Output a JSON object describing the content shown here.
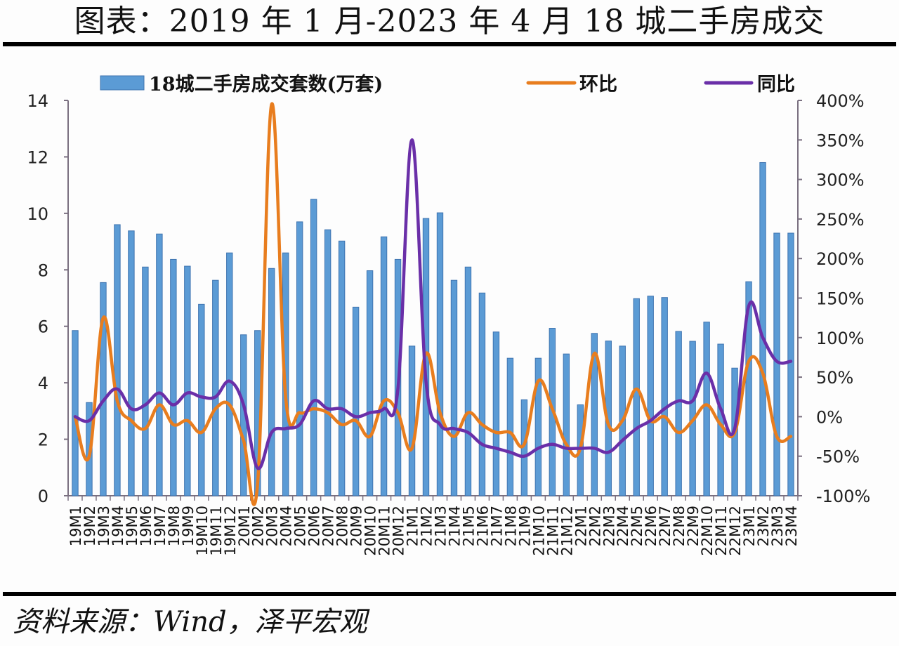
{
  "title": "图表：2019 年 1 月-2023 年 4 月 18 城二手房成交",
  "source": "资料来源：Wind，泽平宏观",
  "legend": [
    {
      "label": "18城二手房成交套数(万套)",
      "type": "bar",
      "color": "#5b9bd5"
    },
    {
      "label": "环比",
      "type": "line",
      "color": "#e87d1e"
    },
    {
      "label": "同比",
      "type": "line",
      "color": "#6a2fa8"
    }
  ],
  "colors": {
    "bar": "#5b9bd5",
    "bar_edge": "#3f74b0",
    "mom": "#e87d1e",
    "yoy": "#6a2fa8",
    "axis": "#7a7080"
  },
  "chart_data": {
    "type": "bar+line",
    "title": "图表：2019 年 1 月-2023 年 4 月 18 城二手房成交",
    "xlabel": "",
    "ylabel_left": "18城二手房成交套数(万套)",
    "ylabel_right": "",
    "ylim_left": [
      0,
      14
    ],
    "yticks_left": [
      0,
      2,
      4,
      6,
      8,
      10,
      12,
      14
    ],
    "ylim_right": [
      -100,
      400
    ],
    "yticks_right": [
      "-100%",
      "-50%",
      "0%",
      "50%",
      "100%",
      "150%",
      "200%",
      "250%",
      "300%",
      "350%",
      "400%"
    ],
    "yticks_right_values": [
      -100,
      -50,
      0,
      50,
      100,
      150,
      200,
      250,
      300,
      350,
      400
    ],
    "legend_position": "top",
    "grid": false,
    "categories": [
      "19M1",
      "19M2",
      "19M3",
      "19M4",
      "19M5",
      "19M6",
      "19M7",
      "19M8",
      "19M9",
      "19M10",
      "19M11",
      "19M12",
      "20M1",
      "20M2",
      "20M3",
      "20M4",
      "20M5",
      "20M6",
      "20M7",
      "20M8",
      "20M9",
      "20M10",
      "20M11",
      "20M12",
      "21M1",
      "21M2",
      "21M3",
      "21M4",
      "21M5",
      "21M6",
      "21M7",
      "21M8",
      "21M9",
      "21M10",
      "21M11",
      "21M12",
      "22M1",
      "22M2",
      "22M3",
      "22M4",
      "22M5",
      "22M6",
      "22M7",
      "22M8",
      "22M9",
      "22M10",
      "22M11",
      "22M12",
      "23M1",
      "23M2",
      "23M3",
      "23M4"
    ],
    "series": [
      {
        "name": "18城二手房成交套数(万套)",
        "axis": "left",
        "type": "bar",
        "values": [
          5.85,
          3.3,
          7.55,
          9.6,
          9.38,
          8.1,
          9.27,
          8.37,
          8.13,
          6.78,
          7.63,
          8.6,
          5.7,
          5.85,
          8.05,
          8.6,
          9.7,
          10.5,
          9.42,
          9.02,
          6.68,
          7.97,
          9.17,
          8.37,
          5.3,
          9.82,
          10.02,
          7.63,
          8.1,
          7.18,
          5.8,
          4.87,
          3.4,
          4.87,
          5.93,
          5.02,
          3.22,
          5.75,
          5.48,
          5.3,
          6.98,
          7.07,
          7.02,
          5.82,
          5.47,
          6.15,
          5.37,
          4.52,
          7.58,
          11.8,
          9.3,
          9.3
        ]
      },
      {
        "name": "环比",
        "axis": "right",
        "type": "line",
        "unit": "%",
        "values": [
          0,
          -50,
          125,
          20,
          -5,
          -15,
          15,
          -10,
          -5,
          -20,
          10,
          15,
          -30,
          -85,
          395,
          25,
          5,
          10,
          5,
          -10,
          -5,
          -25,
          20,
          5,
          -40,
          80,
          5,
          -25,
          5,
          -10,
          -20,
          -20,
          -35,
          45,
          10,
          -35,
          -40,
          80,
          -10,
          -5,
          35,
          -5,
          0,
          -20,
          -5,
          15,
          -10,
          -20,
          70,
          55,
          -25,
          -25
        ]
      },
      {
        "name": "同比",
        "axis": "right",
        "type": "line",
        "unit": "%",
        "values": [
          0,
          -5,
          20,
          35,
          10,
          15,
          30,
          15,
          30,
          25,
          25,
          45,
          15,
          -65,
          -20,
          -15,
          -10,
          20,
          10,
          10,
          0,
          5,
          10,
          35,
          350,
          45,
          -10,
          -15,
          -20,
          -35,
          -40,
          -45,
          -50,
          -40,
          -35,
          -40,
          -40,
          -40,
          -45,
          -30,
          -15,
          -5,
          10,
          20,
          20,
          55,
          10,
          -15,
          140,
          100,
          70,
          70
        ]
      }
    ]
  }
}
